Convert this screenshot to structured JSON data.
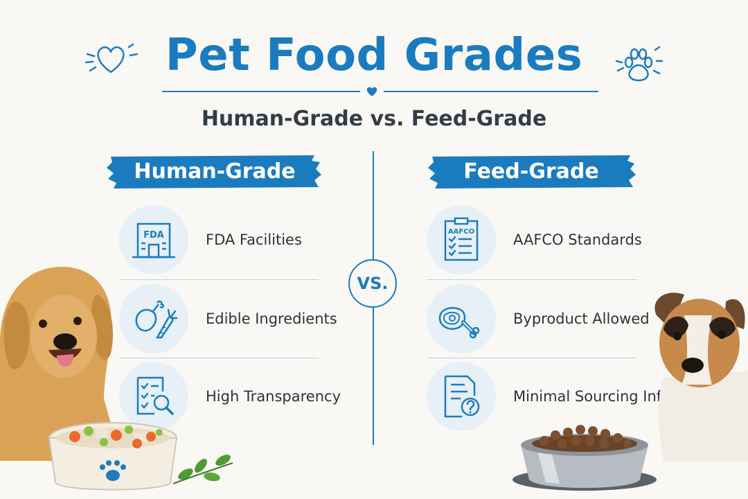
{
  "header": {
    "title": "Pet Food Grades",
    "subtitle": "Human-Grade vs. Feed-Grade"
  },
  "vs_label": "VS.",
  "left": {
    "heading": "Human-Grade",
    "items": [
      {
        "label": "FDA Facilities",
        "icon": "fda-building-icon",
        "icon_text": "FDA"
      },
      {
        "label": "Edible Ingredients",
        "icon": "chicken-carrot-icon"
      },
      {
        "label": "High Transparency",
        "icon": "checklist-magnifier-icon"
      }
    ]
  },
  "right": {
    "heading": "Feed-Grade",
    "items": [
      {
        "label": "AAFCO Standards",
        "icon": "clipboard-checklist-icon",
        "icon_text": "AAFCO"
      },
      {
        "label": "Byproduct Allowed",
        "icon": "meat-bone-icon"
      },
      {
        "label": "Minimal Sourcing Info",
        "icon": "document-question-icon"
      }
    ]
  },
  "colors": {
    "accent": "#1a7cbf",
    "icon_bg": "#e7f0f6",
    "background": "#faf8f5"
  }
}
